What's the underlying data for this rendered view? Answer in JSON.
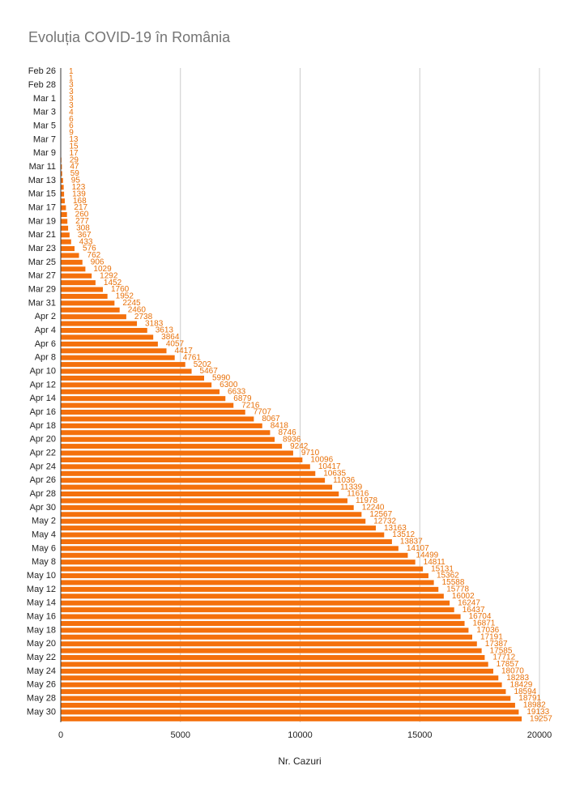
{
  "chart_data": {
    "type": "bar",
    "orientation": "horizontal",
    "title": "Evoluția COVID-19 în România",
    "x_label": "Nr. Cazuri",
    "categories": [
      "Feb 26",
      null,
      "Feb 28",
      null,
      "Mar 1",
      null,
      "Mar 3",
      null,
      "Mar 5",
      null,
      "Mar 7",
      null,
      "Mar 9",
      null,
      "Mar 11",
      null,
      "Mar 13",
      null,
      "Mar 15",
      null,
      "Mar 17",
      null,
      "Mar 19",
      null,
      "Mar 21",
      null,
      "Mar 23",
      null,
      "Mar 25",
      null,
      "Mar 27",
      null,
      "Mar 29",
      null,
      "Mar 31",
      null,
      "Apr 2",
      null,
      "Apr 4",
      null,
      "Apr 6",
      null,
      "Apr 8",
      null,
      "Apr 10",
      null,
      "Apr 12",
      null,
      "Apr 14",
      null,
      "Apr 16",
      null,
      "Apr 18",
      null,
      "Apr 20",
      null,
      "Apr 22",
      null,
      "Apr 24",
      null,
      "Apr 26",
      null,
      "Apr 28",
      null,
      "Apr 30",
      null,
      "May 2",
      null,
      "May 4",
      null,
      "May 6",
      null,
      "May 8",
      null,
      "May 10",
      null,
      "May 12",
      null,
      "May 14",
      null,
      "May 16",
      null,
      "May 18",
      null,
      "May 20",
      null,
      "May 22",
      null,
      "May 24",
      null,
      "May 26",
      null,
      "May 28",
      null,
      "May 30",
      null
    ],
    "values": [
      1,
      1,
      3,
      3,
      3,
      3,
      4,
      6,
      6,
      9,
      13,
      15,
      17,
      29,
      47,
      59,
      95,
      123,
      139,
      168,
      217,
      260,
      277,
      308,
      367,
      433,
      576,
      762,
      906,
      1029,
      1292,
      1452,
      1760,
      1952,
      2245,
      2460,
      2738,
      3183,
      3613,
      3864,
      4057,
      4417,
      4761,
      5202,
      5467,
      5990,
      6300,
      6633,
      6879,
      7216,
      7707,
      8067,
      8418,
      8746,
      8936,
      9242,
      9710,
      10096,
      10417,
      10635,
      11036,
      11339,
      11616,
      11978,
      12240,
      12567,
      12732,
      13163,
      13512,
      13837,
      14107,
      14499,
      14811,
      15131,
      15362,
      15588,
      15778,
      16002,
      16247,
      16437,
      16704,
      16871,
      17036,
      17191,
      17387,
      17585,
      17712,
      17857,
      18070,
      18283,
      18429,
      18594,
      18791,
      18982,
      19133,
      19257
    ],
    "color": "#f4700c",
    "xlim": [
      0,
      20000
    ],
    "xticks": [
      0,
      5000,
      10000,
      15000,
      20000
    ],
    "grid": true
  }
}
